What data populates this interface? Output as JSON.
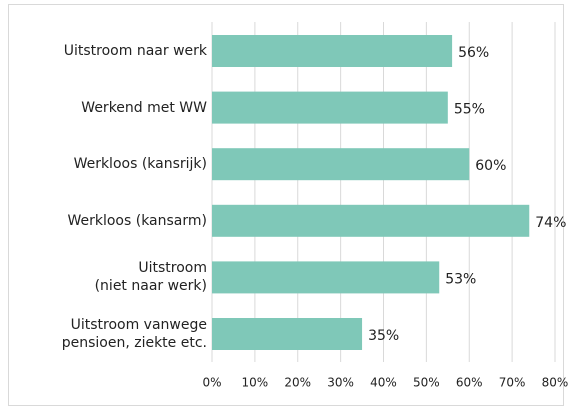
{
  "chart_data": {
    "type": "bar",
    "orientation": "horizontal",
    "categories": [
      "Uitstroom naar werk",
      "Werkend met WW",
      "Werkloos (kansrijk)",
      "Werkloos (kansarm)",
      "Uitstroom\n(niet naar werk)",
      "Uitstroom vanwege\npensioen, ziekte etc."
    ],
    "values": [
      56,
      55,
      60,
      74,
      53,
      35
    ],
    "value_labels": [
      "56%",
      "55%",
      "60%",
      "74%",
      "53%",
      "35%"
    ],
    "color": "#7fc8b8",
    "xlim": [
      0,
      80
    ],
    "xticks": [
      {
        "value": 0,
        "label": "0%"
      },
      {
        "value": 10,
        "label": "10%"
      },
      {
        "value": 20,
        "label": "20%"
      },
      {
        "value": 30,
        "label": "30%"
      },
      {
        "value": 40,
        "label": "40%"
      },
      {
        "value": 50,
        "label": "50%"
      },
      {
        "value": 60,
        "label": "60%"
      },
      {
        "value": 70,
        "label": "70%"
      },
      {
        "value": 80,
        "label": "80%"
      }
    ],
    "grid": true
  }
}
